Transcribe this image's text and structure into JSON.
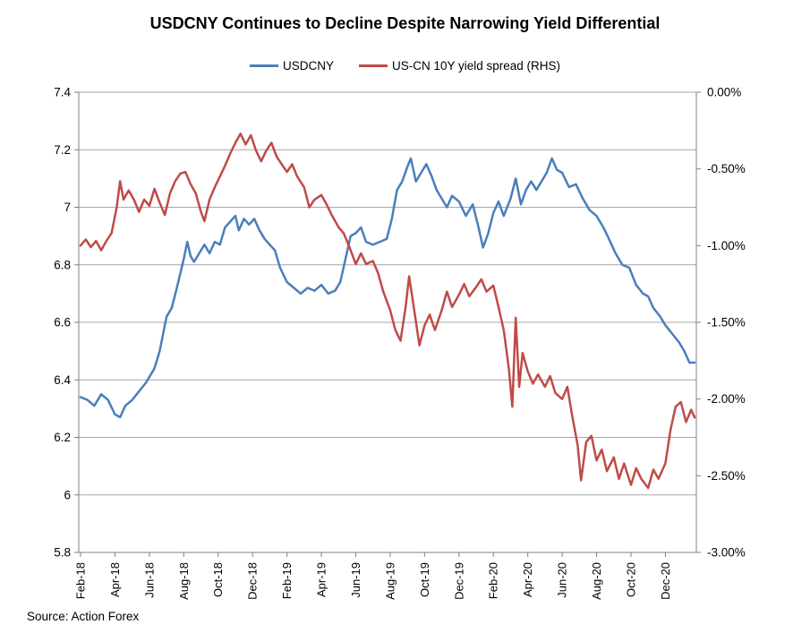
{
  "title": "USDCNY Continues to Decline Despite Narrowing Yield Differential",
  "source": "Source: Action Forex",
  "legend": [
    {
      "label": "USDCNY",
      "color": "#4a7ebb"
    },
    {
      "label": "US-CN 10Y yield spread (RHS)",
      "color": "#be4b48"
    }
  ],
  "colors": {
    "axis": "#808080",
    "grid": "#a6a6a6",
    "tick_label": "#000000",
    "background": "#ffffff"
  },
  "chart_data": {
    "type": "line",
    "title": "USDCNY Continues to Decline Despite Narrowing Yield Differential",
    "xlabel": "",
    "ylabel_left": "USDCNY",
    "ylabel_right": "US-CN 10Y yield spread",
    "grid": true,
    "legend_position": "top-center",
    "x_unit": "months since Feb-2018",
    "x_domain": [
      0,
      35.8
    ],
    "x_ticks": [
      {
        "t": 0,
        "label": "Feb-18"
      },
      {
        "t": 2,
        "label": "Apr-18"
      },
      {
        "t": 4,
        "label": "Jun-18"
      },
      {
        "t": 6,
        "label": "Aug-18"
      },
      {
        "t": 8,
        "label": "Oct-18"
      },
      {
        "t": 10,
        "label": "Dec-18"
      },
      {
        "t": 12,
        "label": "Feb-19"
      },
      {
        "t": 14,
        "label": "Apr-19"
      },
      {
        "t": 16,
        "label": "Jun-19"
      },
      {
        "t": 18,
        "label": "Aug-19"
      },
      {
        "t": 20,
        "label": "Oct-19"
      },
      {
        "t": 22,
        "label": "Dec-19"
      },
      {
        "t": 24,
        "label": "Feb-20"
      },
      {
        "t": 26,
        "label": "Apr-20"
      },
      {
        "t": 28,
        "label": "Jun-20"
      },
      {
        "t": 30,
        "label": "Aug-20"
      },
      {
        "t": 32,
        "label": "Oct-20"
      },
      {
        "t": 34,
        "label": "Dec-20"
      }
    ],
    "left_axis": {
      "min": 5.8,
      "max": 7.4,
      "step": 0.2,
      "tick_labels": [
        "5.8",
        "6",
        "6.2",
        "6.4",
        "6.6",
        "6.8",
        "7",
        "7.2",
        "7.4"
      ]
    },
    "right_axis": {
      "min": -3.0,
      "max": 0.0,
      "step": 0.5,
      "tick_labels": [
        "-3.00%",
        "-2.50%",
        "-2.00%",
        "-1.50%",
        "-1.00%",
        "-0.50%",
        "0.00%"
      ]
    },
    "series": [
      {
        "name": "USDCNY",
        "axis": "left",
        "color": "#4a7ebb",
        "points": [
          [
            0,
            6.34
          ],
          [
            0.4,
            6.33
          ],
          [
            0.8,
            6.31
          ],
          [
            1.2,
            6.35
          ],
          [
            1.6,
            6.33
          ],
          [
            2,
            6.28
          ],
          [
            2.3,
            6.27
          ],
          [
            2.6,
            6.31
          ],
          [
            3,
            6.33
          ],
          [
            3.4,
            6.36
          ],
          [
            3.8,
            6.39
          ],
          [
            4,
            6.41
          ],
          [
            4.3,
            6.44
          ],
          [
            4.6,
            6.5
          ],
          [
            5,
            6.62
          ],
          [
            5.3,
            6.65
          ],
          [
            5.6,
            6.72
          ],
          [
            6,
            6.82
          ],
          [
            6.2,
            6.88
          ],
          [
            6.4,
            6.83
          ],
          [
            6.6,
            6.81
          ],
          [
            6.9,
            6.84
          ],
          [
            7.2,
            6.87
          ],
          [
            7.5,
            6.84
          ],
          [
            7.8,
            6.88
          ],
          [
            8.1,
            6.87
          ],
          [
            8.4,
            6.93
          ],
          [
            8.7,
            6.95
          ],
          [
            9,
            6.97
          ],
          [
            9.2,
            6.92
          ],
          [
            9.5,
            6.96
          ],
          [
            9.8,
            6.94
          ],
          [
            10.1,
            6.96
          ],
          [
            10.4,
            6.92
          ],
          [
            10.7,
            6.89
          ],
          [
            11,
            6.87
          ],
          [
            11.3,
            6.85
          ],
          [
            11.6,
            6.79
          ],
          [
            12,
            6.74
          ],
          [
            12.4,
            6.72
          ],
          [
            12.8,
            6.7
          ],
          [
            13.2,
            6.72
          ],
          [
            13.6,
            6.71
          ],
          [
            14,
            6.73
          ],
          [
            14.4,
            6.7
          ],
          [
            14.8,
            6.71
          ],
          [
            15.1,
            6.74
          ],
          [
            15.4,
            6.82
          ],
          [
            15.7,
            6.9
          ],
          [
            16,
            6.91
          ],
          [
            16.3,
            6.93
          ],
          [
            16.6,
            6.88
          ],
          [
            17,
            6.87
          ],
          [
            17.4,
            6.88
          ],
          [
            17.8,
            6.89
          ],
          [
            18.1,
            6.96
          ],
          [
            18.4,
            7.06
          ],
          [
            18.7,
            7.09
          ],
          [
            19,
            7.14
          ],
          [
            19.2,
            7.17
          ],
          [
            19.5,
            7.09
          ],
          [
            19.8,
            7.12
          ],
          [
            20.1,
            7.15
          ],
          [
            20.4,
            7.11
          ],
          [
            20.7,
            7.06
          ],
          [
            21,
            7.03
          ],
          [
            21.3,
            7
          ],
          [
            21.6,
            7.04
          ],
          [
            22,
            7.02
          ],
          [
            22.4,
            6.97
          ],
          [
            22.8,
            7.01
          ],
          [
            23.1,
            6.94
          ],
          [
            23.4,
            6.86
          ],
          [
            23.7,
            6.91
          ],
          [
            24,
            6.98
          ],
          [
            24.3,
            7.02
          ],
          [
            24.6,
            6.97
          ],
          [
            25,
            7.03
          ],
          [
            25.3,
            7.1
          ],
          [
            25.6,
            7.01
          ],
          [
            25.9,
            7.06
          ],
          [
            26.2,
            7.09
          ],
          [
            26.5,
            7.06
          ],
          [
            26.8,
            7.09
          ],
          [
            27.1,
            7.12
          ],
          [
            27.4,
            7.17
          ],
          [
            27.7,
            7.13
          ],
          [
            28,
            7.12
          ],
          [
            28.4,
            7.07
          ],
          [
            28.8,
            7.08
          ],
          [
            29.2,
            7.03
          ],
          [
            29.6,
            6.99
          ],
          [
            30,
            6.97
          ],
          [
            30.4,
            6.93
          ],
          [
            30.8,
            6.88
          ],
          [
            31.1,
            6.84
          ],
          [
            31.5,
            6.8
          ],
          [
            31.9,
            6.79
          ],
          [
            32.3,
            6.73
          ],
          [
            32.7,
            6.7
          ],
          [
            33,
            6.69
          ],
          [
            33.3,
            6.65
          ],
          [
            33.7,
            6.62
          ],
          [
            34,
            6.59
          ],
          [
            34.4,
            6.56
          ],
          [
            34.8,
            6.53
          ],
          [
            35.1,
            6.5
          ],
          [
            35.4,
            6.46
          ],
          [
            35.7,
            6.46
          ]
        ]
      },
      {
        "name": "US-CN 10Y yield spread (RHS)",
        "axis": "right",
        "color": "#be4b48",
        "points": [
          [
            0,
            -1
          ],
          [
            0.3,
            -0.96
          ],
          [
            0.6,
            -1.01
          ],
          [
            0.9,
            -0.97
          ],
          [
            1.2,
            -1.03
          ],
          [
            1.5,
            -0.97
          ],
          [
            1.8,
            -0.92
          ],
          [
            2.1,
            -0.75
          ],
          [
            2.3,
            -0.58
          ],
          [
            2.5,
            -0.7
          ],
          [
            2.8,
            -0.64
          ],
          [
            3.1,
            -0.7
          ],
          [
            3.4,
            -0.78
          ],
          [
            3.7,
            -0.7
          ],
          [
            4,
            -0.74
          ],
          [
            4.3,
            -0.63
          ],
          [
            4.6,
            -0.72
          ],
          [
            4.9,
            -0.8
          ],
          [
            5.2,
            -0.66
          ],
          [
            5.5,
            -0.58
          ],
          [
            5.8,
            -0.53
          ],
          [
            6.1,
            -0.52
          ],
          [
            6.4,
            -0.6
          ],
          [
            6.7,
            -0.66
          ],
          [
            7,
            -0.78
          ],
          [
            7.2,
            -0.84
          ],
          [
            7.5,
            -0.7
          ],
          [
            7.8,
            -0.62
          ],
          [
            8.1,
            -0.55
          ],
          [
            8.4,
            -0.48
          ],
          [
            8.7,
            -0.4
          ],
          [
            9,
            -0.33
          ],
          [
            9.3,
            -0.27
          ],
          [
            9.6,
            -0.34
          ],
          [
            9.9,
            -0.28
          ],
          [
            10.2,
            -0.38
          ],
          [
            10.5,
            -0.45
          ],
          [
            10.8,
            -0.38
          ],
          [
            11.1,
            -0.33
          ],
          [
            11.4,
            -0.42
          ],
          [
            11.7,
            -0.47
          ],
          [
            12,
            -0.52
          ],
          [
            12.3,
            -0.47
          ],
          [
            12.6,
            -0.55
          ],
          [
            13,
            -0.62
          ],
          [
            13.3,
            -0.75
          ],
          [
            13.6,
            -0.7
          ],
          [
            14,
            -0.67
          ],
          [
            14.3,
            -0.73
          ],
          [
            14.6,
            -0.8
          ],
          [
            15,
            -0.88
          ],
          [
            15.3,
            -0.92
          ],
          [
            15.6,
            -1
          ],
          [
            16,
            -1.12
          ],
          [
            16.3,
            -1.05
          ],
          [
            16.6,
            -1.12
          ],
          [
            17,
            -1.1
          ],
          [
            17.3,
            -1.18
          ],
          [
            17.6,
            -1.3
          ],
          [
            18,
            -1.42
          ],
          [
            18.3,
            -1.55
          ],
          [
            18.6,
            -1.62
          ],
          [
            18.9,
            -1.4
          ],
          [
            19.1,
            -1.2
          ],
          [
            19.4,
            -1.42
          ],
          [
            19.7,
            -1.65
          ],
          [
            20,
            -1.52
          ],
          [
            20.3,
            -1.45
          ],
          [
            20.6,
            -1.55
          ],
          [
            21,
            -1.42
          ],
          [
            21.3,
            -1.3
          ],
          [
            21.6,
            -1.4
          ],
          [
            22,
            -1.32
          ],
          [
            22.3,
            -1.25
          ],
          [
            22.6,
            -1.33
          ],
          [
            23,
            -1.27
          ],
          [
            23.3,
            -1.22
          ],
          [
            23.6,
            -1.3
          ],
          [
            24,
            -1.26
          ],
          [
            24.3,
            -1.4
          ],
          [
            24.6,
            -1.55
          ],
          [
            24.9,
            -1.8
          ],
          [
            25.1,
            -2.05
          ],
          [
            25.3,
            -1.47
          ],
          [
            25.5,
            -1.92
          ],
          [
            25.7,
            -1.7
          ],
          [
            26,
            -1.82
          ],
          [
            26.3,
            -1.9
          ],
          [
            26.6,
            -1.84
          ],
          [
            27,
            -1.92
          ],
          [
            27.3,
            -1.85
          ],
          [
            27.6,
            -1.96
          ],
          [
            28,
            -2
          ],
          [
            28.3,
            -1.92
          ],
          [
            28.6,
            -2.12
          ],
          [
            28.9,
            -2.3
          ],
          [
            29.1,
            -2.53
          ],
          [
            29.4,
            -2.28
          ],
          [
            29.7,
            -2.24
          ],
          [
            30,
            -2.4
          ],
          [
            30.3,
            -2.33
          ],
          [
            30.6,
            -2.47
          ],
          [
            31,
            -2.38
          ],
          [
            31.3,
            -2.52
          ],
          [
            31.6,
            -2.42
          ],
          [
            32,
            -2.56
          ],
          [
            32.3,
            -2.45
          ],
          [
            32.6,
            -2.52
          ],
          [
            33,
            -2.58
          ],
          [
            33.3,
            -2.46
          ],
          [
            33.6,
            -2.52
          ],
          [
            34,
            -2.42
          ],
          [
            34.3,
            -2.2
          ],
          [
            34.6,
            -2.05
          ],
          [
            34.9,
            -2.02
          ],
          [
            35.2,
            -2.15
          ],
          [
            35.5,
            -2.07
          ],
          [
            35.7,
            -2.12
          ]
        ]
      }
    ]
  }
}
